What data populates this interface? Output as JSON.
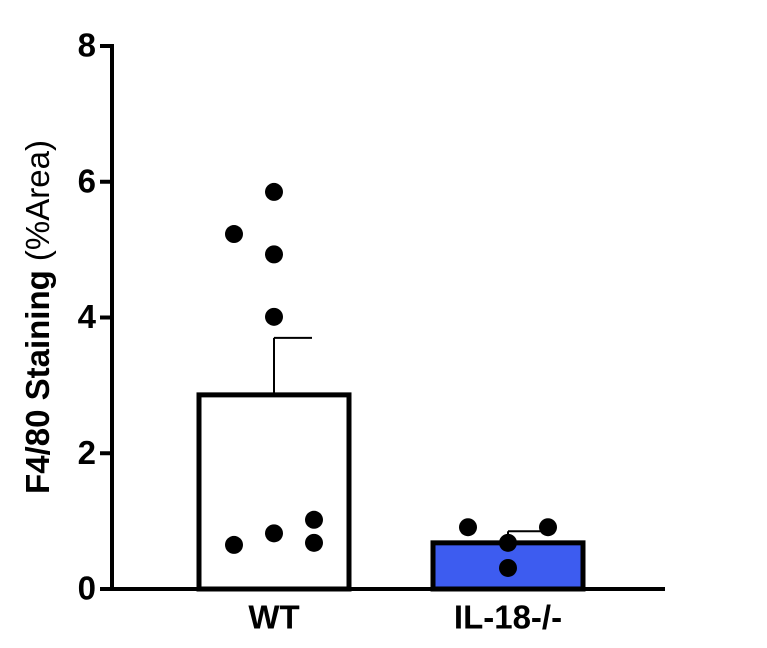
{
  "chart_data": {
    "type": "bar",
    "ylabel": "F4/80 Staining",
    "ylabel_unit": "(%Area)",
    "categories": [
      "WT",
      "IL-18-/-"
    ],
    "values": [
      2.86,
      0.68
    ],
    "errors": [
      0.84,
      0.17
    ],
    "colors": [
      "#ffffff",
      "#3d5cf0"
    ],
    "points": [
      [
        0.65,
        0.82,
        1.02,
        0.68,
        5.23,
        5.85,
        4.93,
        4.01
      ],
      [
        0.91,
        0.91,
        0.68,
        0.31
      ]
    ],
    "ylim": [
      0,
      8
    ],
    "yticks": [
      0,
      2,
      4,
      6,
      8
    ]
  }
}
